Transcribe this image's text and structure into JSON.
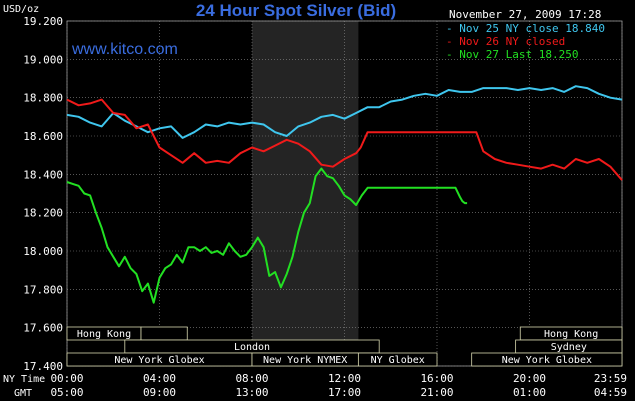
{
  "header": {
    "title": "24 Hour Spot Silver (Bid)",
    "units": "USD/oz",
    "timestamp": "November 27, 2009 17:28",
    "site": "www.kitco.com"
  },
  "colors": {
    "background": "#000000",
    "grid": "#8a8a8a",
    "text": "#ffffff",
    "title": "#3a6de0",
    "site": "#3a6de0",
    "nov25": "#3fc6ee",
    "nov26": "#f01a1a",
    "nov27": "#22e022",
    "shade": "#242424",
    "session_bg": "#000000",
    "session_border": "#d8d8b0",
    "session_text": "#ffffff"
  },
  "axis_labels": {
    "ny_time": "NY Time",
    "gmt": "GMT"
  },
  "chart_data": {
    "type": "line",
    "title": "24 Hour Spot Silver (Bid)",
    "ylabel": "USD/oz",
    "ylim": [
      17.4,
      19.2
    ],
    "yticks": [
      "19.200",
      "19.000",
      "18.800",
      "18.600",
      "18.400",
      "18.200",
      "18.000",
      "17.800",
      "17.600",
      "17.400"
    ],
    "xlim": [
      0,
      24
    ],
    "x_ticks_ny": [
      "00:00",
      "04:00",
      "08:00",
      "12:00",
      "16:00",
      "20:00",
      "23:59"
    ],
    "x_ticks_gmt": [
      "05:00",
      "09:00",
      "13:00",
      "17:00",
      "21:00",
      "01:00",
      "04:59"
    ],
    "x_tick_hours": [
      0,
      4,
      8,
      12,
      16,
      20,
      24
    ],
    "grid": true,
    "shaded_hours": [
      8,
      12.6
    ],
    "legend": [
      {
        "label": "Nov 25 NY close 18.840",
        "series": "nov25"
      },
      {
        "label": "Nov 26 NY closed",
        "series": "nov26"
      },
      {
        "label": "Nov 27 Last 18.250",
        "series": "nov27"
      }
    ],
    "series": [
      {
        "name": "Nov 25 NY close 18.840",
        "key": "nov25",
        "x": [
          0,
          0.5,
          1,
          1.5,
          2,
          2.5,
          3,
          3.5,
          4,
          4.5,
          5,
          5.5,
          6,
          6.5,
          7,
          7.5,
          8,
          8.5,
          9,
          9.5,
          10,
          10.5,
          11,
          11.5,
          12,
          12.5,
          13,
          13.5,
          14,
          14.5,
          15,
          15.5,
          16,
          16.5,
          17,
          17.5,
          18,
          18.5,
          19,
          19.5,
          20,
          20.5,
          21,
          21.5,
          22,
          22.5,
          23,
          23.5,
          24
        ],
        "y": [
          18.71,
          18.7,
          18.67,
          18.65,
          18.72,
          18.68,
          18.65,
          18.62,
          18.64,
          18.65,
          18.59,
          18.62,
          18.66,
          18.65,
          18.67,
          18.66,
          18.67,
          18.66,
          18.62,
          18.6,
          18.65,
          18.67,
          18.7,
          18.71,
          18.69,
          18.72,
          18.75,
          18.75,
          18.78,
          18.79,
          18.81,
          18.82,
          18.81,
          18.84,
          18.83,
          18.83,
          18.85,
          18.85,
          18.85,
          18.84,
          18.85,
          18.84,
          18.85,
          18.83,
          18.86,
          18.85,
          18.82,
          18.8,
          18.79
        ]
      },
      {
        "name": "Nov 26 NY closed",
        "key": "nov26",
        "x": [
          0,
          0.5,
          1,
          1.5,
          2,
          2.5,
          3,
          3.5,
          4,
          4.5,
          5,
          5.5,
          6,
          6.5,
          7,
          7.5,
          8,
          8.5,
          9,
          9.5,
          10,
          10.5,
          11,
          11.5,
          12,
          12.5,
          12.7,
          13,
          14,
          15,
          16,
          17,
          17.7,
          18,
          18.5,
          19,
          19.5,
          20,
          20.5,
          21,
          21.5,
          22,
          22.5,
          23,
          23.5,
          24
        ],
        "y": [
          18.79,
          18.76,
          18.77,
          18.79,
          18.72,
          18.71,
          18.64,
          18.66,
          18.54,
          18.5,
          18.46,
          18.51,
          18.46,
          18.47,
          18.46,
          18.51,
          18.54,
          18.52,
          18.55,
          18.58,
          18.56,
          18.52,
          18.45,
          18.44,
          18.48,
          18.51,
          18.54,
          18.62,
          18.62,
          18.62,
          18.62,
          18.62,
          18.62,
          18.52,
          18.48,
          18.46,
          18.45,
          18.44,
          18.43,
          18.45,
          18.43,
          18.48,
          18.46,
          18.48,
          18.44,
          18.37
        ]
      },
      {
        "name": "Nov 27 Last 18.250",
        "key": "nov27",
        "x": [
          0,
          0.25,
          0.5,
          0.75,
          1,
          1.25,
          1.5,
          1.75,
          2,
          2.25,
          2.5,
          2.75,
          3,
          3.25,
          3.5,
          3.75,
          4,
          4.25,
          4.5,
          4.75,
          5,
          5.25,
          5.5,
          5.75,
          6,
          6.25,
          6.5,
          6.75,
          7,
          7.25,
          7.5,
          7.75,
          8,
          8.25,
          8.5,
          8.75,
          9,
          9.25,
          9.5,
          9.75,
          10,
          10.25,
          10.5,
          10.75,
          11,
          11.25,
          11.5,
          11.75,
          12,
          12.25,
          12.5,
          12.75,
          13,
          14,
          15,
          16,
          16.8,
          17,
          17.1,
          17.2,
          17.3
        ],
        "y": [
          18.36,
          18.35,
          18.34,
          18.3,
          18.29,
          18.2,
          18.12,
          18.02,
          17.97,
          17.92,
          17.97,
          17.91,
          17.88,
          17.79,
          17.83,
          17.73,
          17.86,
          17.91,
          17.93,
          17.98,
          17.94,
          18.02,
          18.02,
          18.0,
          18.02,
          17.99,
          18.0,
          17.98,
          18.04,
          18.0,
          17.97,
          17.98,
          18.02,
          18.07,
          18.02,
          17.87,
          17.89,
          17.81,
          17.88,
          17.97,
          18.1,
          18.2,
          18.25,
          18.39,
          18.43,
          18.39,
          18.38,
          18.34,
          18.29,
          18.27,
          18.24,
          18.29,
          18.33,
          18.33,
          18.33,
          18.33,
          18.33,
          18.28,
          18.26,
          18.25,
          18.25
        ]
      }
    ]
  },
  "sessions": {
    "row1": [
      {
        "label": "Hong Kong",
        "start": 0,
        "end": 3.2
      },
      {
        "label": "",
        "start": 3.2,
        "end": 5.2
      },
      {
        "label": "Hong Kong",
        "start": 19.6,
        "end": 24
      }
    ],
    "row2": [
      {
        "label": "London",
        "start": 2.5,
        "end": 13.5
      },
      {
        "label": "Sydney",
        "start": 19.4,
        "end": 24
      }
    ],
    "row3": [
      {
        "label": "New York Globex",
        "start": 0,
        "end": 8
      },
      {
        "label": "New York NYMEX",
        "start": 8,
        "end": 12.6
      },
      {
        "label": "NY Globex",
        "start": 12.6,
        "end": 16
      },
      {
        "label": "New York Globex",
        "start": 17.5,
        "end": 24
      }
    ]
  }
}
